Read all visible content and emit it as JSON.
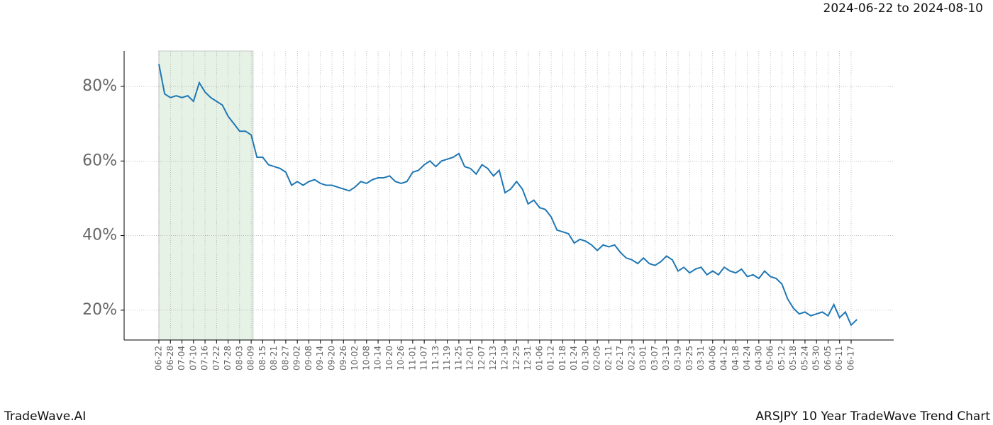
{
  "chart_data": {
    "type": "line",
    "title": "ARSJPY 10 Year TradeWave Trend Chart",
    "subtitle": "2024-06-22 to 2024-08-10",
    "brand": "TradeWave.AI",
    "x": [
      "06-22",
      "06-25",
      "06-28",
      "07-01",
      "07-04",
      "07-07",
      "07-10",
      "07-13",
      "07-16",
      "07-19",
      "07-22",
      "07-25",
      "07-28",
      "07-31",
      "08-03",
      "08-06",
      "08-09",
      "08-12",
      "08-15",
      "08-18",
      "08-21",
      "08-24",
      "08-27",
      "08-30",
      "09-02",
      "09-05",
      "09-08",
      "09-11",
      "09-14",
      "09-17",
      "09-20",
      "09-23",
      "09-26",
      "09-29",
      "10-02",
      "10-05",
      "10-08",
      "10-11",
      "10-14",
      "10-17",
      "10-20",
      "10-23",
      "10-26",
      "10-29",
      "11-01",
      "11-04",
      "11-07",
      "11-10",
      "11-13",
      "11-16",
      "11-19",
      "11-22",
      "11-25",
      "11-28",
      "12-01",
      "12-04",
      "12-07",
      "12-10",
      "12-13",
      "12-16",
      "12-19",
      "12-22",
      "12-25",
      "12-28",
      "12-31",
      "01-03",
      "01-06",
      "01-09",
      "01-12",
      "01-15",
      "01-18",
      "01-21",
      "01-24",
      "01-27",
      "01-30",
      "02-02",
      "02-05",
      "02-08",
      "02-11",
      "02-14",
      "02-17",
      "02-20",
      "02-23",
      "02-26",
      "03-01",
      "03-04",
      "03-07",
      "03-10",
      "03-13",
      "03-16",
      "03-19",
      "03-22",
      "03-25",
      "03-28",
      "03-31",
      "04-03",
      "04-06",
      "04-09",
      "04-12",
      "04-15",
      "04-18",
      "04-21",
      "04-24",
      "04-27",
      "04-30",
      "05-03",
      "05-06",
      "05-09",
      "05-12",
      "05-15",
      "05-18",
      "05-21",
      "05-24",
      "05-27",
      "05-30",
      "06-02",
      "06-05",
      "06-08",
      "06-11",
      "06-14",
      "06-17",
      "06-20"
    ],
    "values": [
      86,
      78,
      77,
      77.5,
      77,
      77.5,
      76,
      81,
      78.5,
      77,
      76,
      75,
      72,
      70,
      68,
      68,
      67,
      61,
      61,
      59,
      58.5,
      58,
      57,
      53.5,
      54.5,
      53.5,
      54.5,
      55,
      54,
      53.5,
      53.5,
      53,
      52.5,
      52,
      53,
      54.5,
      54,
      55,
      55.5,
      55.5,
      56,
      54.5,
      54,
      54.5,
      57,
      57.5,
      59,
      60,
      58.5,
      60,
      60.5,
      61,
      62,
      58.5,
      58,
      56.5,
      59,
      58,
      56,
      57.5,
      51.5,
      52.5,
      54.5,
      52.5,
      48.5,
      49.5,
      47.5,
      47,
      45,
      41.5,
      41,
      40.5,
      38,
      39,
      38.5,
      37.5,
      36,
      37.5,
      37,
      37.5,
      35.5,
      34,
      33.5,
      32.5,
      34,
      32.5,
      32,
      33,
      34.5,
      33.5,
      30.5,
      31.5,
      30,
      31,
      31.5,
      29.5,
      30.5,
      29.5,
      31.5,
      30.5,
      30,
      31,
      29,
      29.5,
      28.5,
      30.5,
      29,
      28.5,
      27,
      23,
      20.5,
      19,
      19.5,
      18.5,
      19,
      19.5,
      18.5,
      21.5,
      18,
      19.5,
      16,
      17.5
    ],
    "color": "#1f77b4",
    "highlight": [
      "06-22",
      "08-10"
    ],
    "highlight_color": "#e6f2e6",
    "xticks": [
      "06-22",
      "06-28",
      "07-04",
      "07-10",
      "07-16",
      "07-22",
      "07-28",
      "08-03",
      "08-09",
      "08-15",
      "08-21",
      "08-27",
      "09-02",
      "09-08",
      "09-14",
      "09-20",
      "09-26",
      "10-02",
      "10-08",
      "10-14",
      "10-20",
      "10-26",
      "11-01",
      "11-07",
      "11-13",
      "11-19",
      "11-25",
      "12-01",
      "12-07",
      "12-13",
      "12-19",
      "12-25",
      "12-31",
      "01-06",
      "01-12",
      "01-18",
      "01-24",
      "01-30",
      "02-05",
      "02-11",
      "02-17",
      "02-23",
      "03-01",
      "03-07",
      "03-13",
      "03-19",
      "03-25",
      "03-31",
      "04-06",
      "04-12",
      "04-18",
      "04-24",
      "04-30",
      "05-06",
      "05-12",
      "05-18",
      "05-24",
      "05-30",
      "06-05",
      "06-11",
      "06-17"
    ],
    "ylim": [
      12,
      89.5
    ],
    "yticks": [
      {
        "value": 20,
        "label": "20%"
      },
      {
        "value": 40,
        "label": "40%"
      },
      {
        "value": 60,
        "label": "60%"
      },
      {
        "value": 80,
        "label": "80%"
      }
    ],
    "grid": true
  }
}
